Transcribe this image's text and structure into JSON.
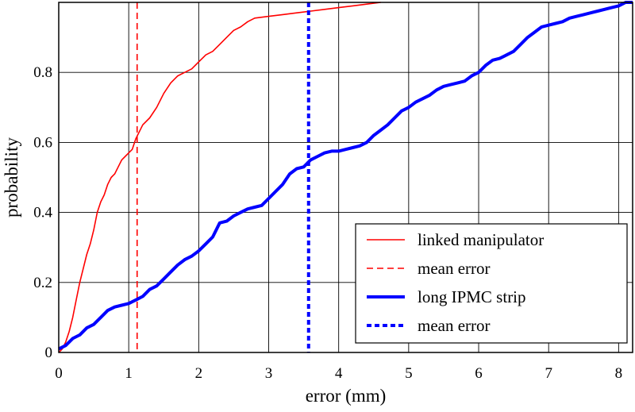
{
  "chart_data": {
    "type": "line",
    "xlabel": "error (mm)",
    "ylabel": "probability",
    "xlim": [
      0,
      8.2
    ],
    "ylim": [
      0,
      1
    ],
    "grid": true,
    "legend_position": "bottom-right",
    "x_ticks": [
      "0",
      "1",
      "2",
      "3",
      "4",
      "5",
      "6",
      "7",
      "8"
    ],
    "y_ticks": [
      "0",
      "0.2",
      "0.4",
      "0.6",
      "0.8"
    ],
    "series": [
      {
        "name": "linked manipulator",
        "color": "#ff0000",
        "style": "solid",
        "points": [
          [
            0.0,
            0.0
          ],
          [
            0.05,
            0.01
          ],
          [
            0.1,
            0.03
          ],
          [
            0.15,
            0.06
          ],
          [
            0.2,
            0.1
          ],
          [
            0.25,
            0.15
          ],
          [
            0.3,
            0.2
          ],
          [
            0.35,
            0.24
          ],
          [
            0.4,
            0.28
          ],
          [
            0.45,
            0.31
          ],
          [
            0.5,
            0.35
          ],
          [
            0.55,
            0.4
          ],
          [
            0.6,
            0.43
          ],
          [
            0.65,
            0.45
          ],
          [
            0.7,
            0.48
          ],
          [
            0.75,
            0.5
          ],
          [
            0.8,
            0.51
          ],
          [
            0.85,
            0.53
          ],
          [
            0.9,
            0.55
          ],
          [
            0.95,
            0.56
          ],
          [
            1.0,
            0.57
          ],
          [
            1.05,
            0.58
          ],
          [
            1.1,
            0.61
          ],
          [
            1.15,
            0.63
          ],
          [
            1.2,
            0.65
          ],
          [
            1.3,
            0.67
          ],
          [
            1.4,
            0.7
          ],
          [
            1.5,
            0.74
          ],
          [
            1.6,
            0.77
          ],
          [
            1.7,
            0.79
          ],
          [
            1.8,
            0.8
          ],
          [
            1.9,
            0.81
          ],
          [
            2.0,
            0.83
          ],
          [
            2.1,
            0.85
          ],
          [
            2.2,
            0.86
          ],
          [
            2.3,
            0.88
          ],
          [
            2.4,
            0.9
          ],
          [
            2.5,
            0.92
          ],
          [
            2.6,
            0.93
          ],
          [
            2.7,
            0.945
          ],
          [
            2.8,
            0.955
          ],
          [
            3.0,
            0.96
          ],
          [
            3.2,
            0.965
          ],
          [
            3.4,
            0.97
          ],
          [
            3.6,
            0.975
          ],
          [
            3.8,
            0.98
          ],
          [
            4.0,
            0.985
          ],
          [
            4.2,
            0.99
          ],
          [
            4.4,
            0.995
          ],
          [
            4.6,
            1.0
          ]
        ]
      },
      {
        "name": "mean error",
        "color": "#ff0000",
        "style": "dashed",
        "x_value": 1.12
      },
      {
        "name": "long IPMC strip",
        "color": "#0000ff",
        "style": "solid",
        "points": [
          [
            0.0,
            0.01
          ],
          [
            0.1,
            0.02
          ],
          [
            0.2,
            0.04
          ],
          [
            0.3,
            0.05
          ],
          [
            0.4,
            0.07
          ],
          [
            0.5,
            0.08
          ],
          [
            0.6,
            0.1
          ],
          [
            0.7,
            0.12
          ],
          [
            0.8,
            0.13
          ],
          [
            0.9,
            0.135
          ],
          [
            1.0,
            0.14
          ],
          [
            1.1,
            0.15
          ],
          [
            1.2,
            0.16
          ],
          [
            1.3,
            0.18
          ],
          [
            1.4,
            0.19
          ],
          [
            1.5,
            0.21
          ],
          [
            1.6,
            0.23
          ],
          [
            1.7,
            0.25
          ],
          [
            1.8,
            0.265
          ],
          [
            1.9,
            0.275
          ],
          [
            2.0,
            0.29
          ],
          [
            2.1,
            0.31
          ],
          [
            2.2,
            0.33
          ],
          [
            2.3,
            0.37
          ],
          [
            2.4,
            0.375
          ],
          [
            2.5,
            0.39
          ],
          [
            2.6,
            0.4
          ],
          [
            2.7,
            0.41
          ],
          [
            2.8,
            0.415
          ],
          [
            2.9,
            0.42
          ],
          [
            3.0,
            0.44
          ],
          [
            3.1,
            0.46
          ],
          [
            3.2,
            0.48
          ],
          [
            3.3,
            0.51
          ],
          [
            3.4,
            0.525
          ],
          [
            3.5,
            0.53
          ],
          [
            3.6,
            0.55
          ],
          [
            3.7,
            0.56
          ],
          [
            3.8,
            0.57
          ],
          [
            3.9,
            0.575
          ],
          [
            4.0,
            0.575
          ],
          [
            4.1,
            0.58
          ],
          [
            4.2,
            0.585
          ],
          [
            4.3,
            0.59
          ],
          [
            4.4,
            0.6
          ],
          [
            4.5,
            0.62
          ],
          [
            4.6,
            0.635
          ],
          [
            4.7,
            0.65
          ],
          [
            4.8,
            0.67
          ],
          [
            4.9,
            0.69
          ],
          [
            5.0,
            0.7
          ],
          [
            5.1,
            0.715
          ],
          [
            5.2,
            0.725
          ],
          [
            5.3,
            0.735
          ],
          [
            5.4,
            0.75
          ],
          [
            5.5,
            0.76
          ],
          [
            5.6,
            0.765
          ],
          [
            5.7,
            0.77
          ],
          [
            5.8,
            0.775
          ],
          [
            5.9,
            0.79
          ],
          [
            6.0,
            0.8
          ],
          [
            6.1,
            0.82
          ],
          [
            6.2,
            0.835
          ],
          [
            6.3,
            0.84
          ],
          [
            6.4,
            0.85
          ],
          [
            6.5,
            0.86
          ],
          [
            6.6,
            0.88
          ],
          [
            6.7,
            0.9
          ],
          [
            6.8,
            0.915
          ],
          [
            6.9,
            0.93
          ],
          [
            7.0,
            0.935
          ],
          [
            7.1,
            0.94
          ],
          [
            7.2,
            0.945
          ],
          [
            7.3,
            0.955
          ],
          [
            7.4,
            0.96
          ],
          [
            7.5,
            0.965
          ],
          [
            7.6,
            0.97
          ],
          [
            7.7,
            0.975
          ],
          [
            7.8,
            0.98
          ],
          [
            7.9,
            0.985
          ],
          [
            8.0,
            0.99
          ],
          [
            8.1,
            1.0
          ],
          [
            8.2,
            1.0
          ]
        ]
      },
      {
        "name": "mean error",
        "color": "#0000ff",
        "style": "dashed",
        "x_value": 3.57
      }
    ]
  }
}
